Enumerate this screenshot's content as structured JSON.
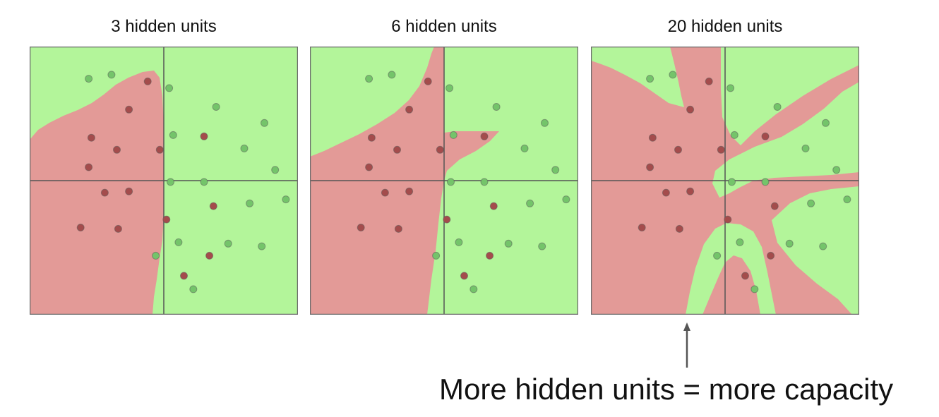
{
  "colors": {
    "green_region": "#b3f59a",
    "red_region": "#e39a97",
    "green_point": "#74c46a",
    "red_point": "#a44c4c",
    "axis": "#555555",
    "frame": "#6b6b6b"
  },
  "panels": [
    {
      "title": "3 hidden units"
    },
    {
      "title": "6 hidden units"
    },
    {
      "title": "20 hidden units"
    }
  ],
  "points": [
    {
      "x": -0.56,
      "y": 0.76,
      "c": "g"
    },
    {
      "x": -0.39,
      "y": 0.79,
      "c": "g"
    },
    {
      "x": -0.12,
      "y": 0.74,
      "c": "r"
    },
    {
      "x": 0.04,
      "y": 0.69,
      "c": "g"
    },
    {
      "x": -0.26,
      "y": 0.53,
      "c": "r"
    },
    {
      "x": 0.39,
      "y": 0.55,
      "c": "g"
    },
    {
      "x": 0.75,
      "y": 0.43,
      "c": "g"
    },
    {
      "x": -0.54,
      "y": 0.32,
      "c": "r"
    },
    {
      "x": 0.07,
      "y": 0.34,
      "c": "g"
    },
    {
      "x": 0.3,
      "y": 0.33,
      "c": "r"
    },
    {
      "x": -0.35,
      "y": 0.23,
      "c": "r"
    },
    {
      "x": -0.03,
      "y": 0.23,
      "c": "r"
    },
    {
      "x": 0.6,
      "y": 0.24,
      "c": "g"
    },
    {
      "x": -0.56,
      "y": 0.1,
      "c": "r"
    },
    {
      "x": 0.83,
      "y": 0.08,
      "c": "g"
    },
    {
      "x": 0.05,
      "y": -0.01,
      "c": "g"
    },
    {
      "x": 0.3,
      "y": -0.01,
      "c": "g"
    },
    {
      "x": -0.44,
      "y": -0.09,
      "c": "r"
    },
    {
      "x": -0.26,
      "y": -0.08,
      "c": "r"
    },
    {
      "x": 0.91,
      "y": -0.14,
      "c": "g"
    },
    {
      "x": 0.64,
      "y": -0.17,
      "c": "g"
    },
    {
      "x": 0.37,
      "y": -0.19,
      "c": "r"
    },
    {
      "x": 0.02,
      "y": -0.29,
      "c": "r"
    },
    {
      "x": -0.62,
      "y": -0.35,
      "c": "r"
    },
    {
      "x": -0.34,
      "y": -0.36,
      "c": "r"
    },
    {
      "x": 0.11,
      "y": -0.46,
      "c": "g"
    },
    {
      "x": 0.48,
      "y": -0.47,
      "c": "g"
    },
    {
      "x": 0.73,
      "y": -0.49,
      "c": "g"
    },
    {
      "x": -0.06,
      "y": -0.56,
      "c": "g"
    },
    {
      "x": 0.34,
      "y": -0.56,
      "c": "r"
    },
    {
      "x": 0.15,
      "y": -0.71,
      "c": "r"
    },
    {
      "x": 0.22,
      "y": -0.81,
      "c": "g"
    }
  ],
  "caption": "More hidden units = more capacity"
}
